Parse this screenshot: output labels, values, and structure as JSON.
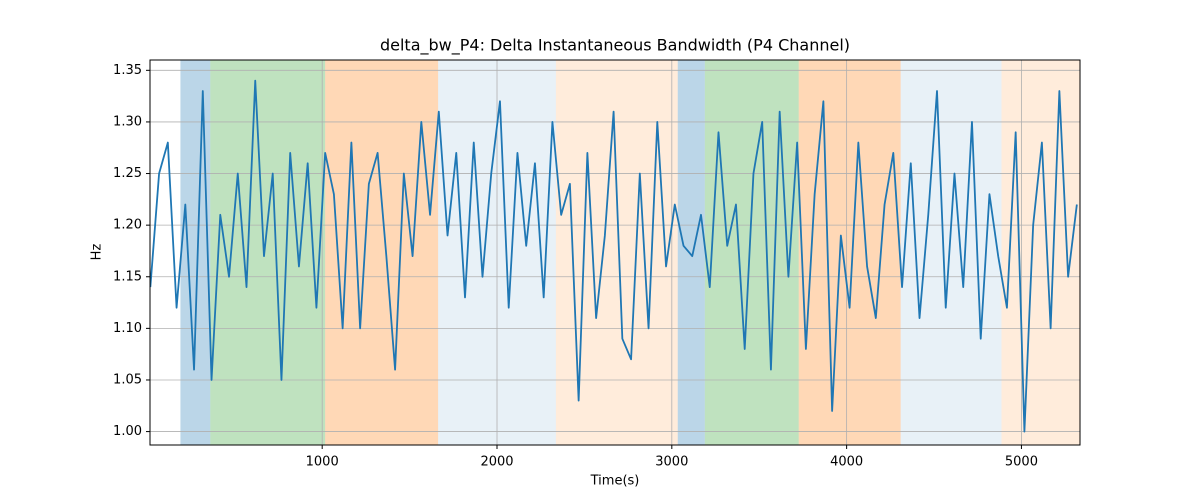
{
  "chart_data": {
    "type": "line",
    "title": "delta_bw_P4: Delta Instantaneous Bandwidth (P4 Channel)",
    "xlabel": "Time(s)",
    "ylabel": "Hz",
    "x": [
      17,
      67,
      117,
      167,
      217,
      267,
      317,
      367,
      417,
      467,
      517,
      567,
      617,
      667,
      717,
      767,
      817,
      867,
      917,
      967,
      1017,
      1067,
      1117,
      1167,
      1217,
      1267,
      1317,
      1367,
      1417,
      1467,
      1517,
      1567,
      1617,
      1667,
      1717,
      1767,
      1817,
      1867,
      1917,
      1967,
      2017,
      2067,
      2117,
      2167,
      2217,
      2267,
      2317,
      2367,
      2417,
      2467,
      2517,
      2567,
      2617,
      2667,
      2717,
      2767,
      2817,
      2867,
      2917,
      2967,
      3017,
      3067,
      3117,
      3167,
      3217,
      3267,
      3317,
      3367,
      3417,
      3467,
      3517,
      3567,
      3617,
      3667,
      3717,
      3767,
      3817,
      3867,
      3917,
      3967,
      4017,
      4067,
      4117,
      4167,
      4217,
      4267,
      4317,
      4367,
      4417,
      4467,
      4517,
      4567,
      4617,
      4667,
      4717,
      4767,
      4817,
      4867,
      4917,
      4967,
      5017,
      5067,
      5117,
      5167,
      5217,
      5267,
      5317
    ],
    "values": [
      1.14,
      1.25,
      1.28,
      1.12,
      1.22,
      1.06,
      1.33,
      1.05,
      1.21,
      1.15,
      1.25,
      1.14,
      1.34,
      1.17,
      1.25,
      1.05,
      1.27,
      1.16,
      1.26,
      1.12,
      1.27,
      1.23,
      1.1,
      1.28,
      1.1,
      1.24,
      1.27,
      1.17,
      1.06,
      1.25,
      1.17,
      1.3,
      1.21,
      1.31,
      1.19,
      1.27,
      1.13,
      1.28,
      1.15,
      1.25,
      1.32,
      1.12,
      1.27,
      1.18,
      1.26,
      1.13,
      1.3,
      1.21,
      1.24,
      1.03,
      1.27,
      1.11,
      1.19,
      1.31,
      1.09,
      1.07,
      1.25,
      1.1,
      1.3,
      1.16,
      1.22,
      1.18,
      1.17,
      1.21,
      1.14,
      1.29,
      1.18,
      1.22,
      1.08,
      1.25,
      1.3,
      1.06,
      1.31,
      1.15,
      1.28,
      1.08,
      1.23,
      1.32,
      1.02,
      1.19,
      1.12,
      1.28,
      1.16,
      1.11,
      1.22,
      1.27,
      1.14,
      1.26,
      1.11,
      1.21,
      1.33,
      1.12,
      1.25,
      1.14,
      1.3,
      1.09,
      1.23,
      1.17,
      1.12,
      1.29,
      1.0,
      1.2,
      1.28,
      1.1,
      1.33,
      1.15,
      1.22
    ],
    "color": "#1f77b4",
    "regions": [
      {
        "start": 189,
        "end": 360,
        "color": "rgba(31,119,180,0.3)"
      },
      {
        "start": 360,
        "end": 1017,
        "color": "rgba(44,160,44,0.3)"
      },
      {
        "start": 1017,
        "end": 1663,
        "color": "rgba(255,127,14,0.3)"
      },
      {
        "start": 1663,
        "end": 2337,
        "color": "rgba(31,119,180,0.1)"
      },
      {
        "start": 2337,
        "end": 3034,
        "color": "rgba(255,127,14,0.15)"
      },
      {
        "start": 3034,
        "end": 3189,
        "color": "rgba(31,119,180,0.3)"
      },
      {
        "start": 3189,
        "end": 3726,
        "color": "rgba(44,160,44,0.3)"
      },
      {
        "start": 3726,
        "end": 4309,
        "color": "rgba(255,127,14,0.3)"
      },
      {
        "start": 4309,
        "end": 4886,
        "color": "rgba(31,119,180,0.1)"
      },
      {
        "start": 4886,
        "end": 5335,
        "color": "rgba(255,127,14,0.15)"
      }
    ],
    "xlim": [
      15,
      5335
    ],
    "xticks": [
      1000,
      2000,
      3000,
      4000,
      5000
    ],
    "ylim": [
      0.987,
      1.36
    ],
    "yticks": [
      {
        "value": 1,
        "label": "1.00"
      },
      1.05,
      {
        "value": 1.1,
        "label": "1.10"
      },
      1.15,
      {
        "value": 1.2,
        "label": "1.20"
      },
      1.25,
      {
        "value": 1.3,
        "label": "1.30"
      },
      1.35
    ],
    "grid": true
  }
}
